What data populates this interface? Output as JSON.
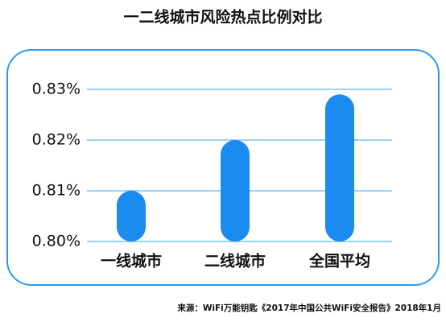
{
  "chart_data": {
    "type": "bar",
    "title": "一二线城市风险热点比例对比",
    "categories": [
      "一线城市",
      "二线城市",
      "全国平均"
    ],
    "values": [
      0.81,
      0.82,
      0.829
    ],
    "color": "#1a8cf0",
    "ylim": [
      0.8,
      0.83
    ],
    "yticks": [
      {
        "value": 0.8,
        "label": "0.80%"
      },
      {
        "value": 0.81,
        "label": "0.81%"
      },
      {
        "value": 0.82,
        "label": "0.82%"
      },
      {
        "value": 0.83,
        "label": "0.83%"
      }
    ],
    "grid": true,
    "source": "来源：WiFi万能钥匙《2017年中国公共WiFi安全报告》2018年1月"
  }
}
